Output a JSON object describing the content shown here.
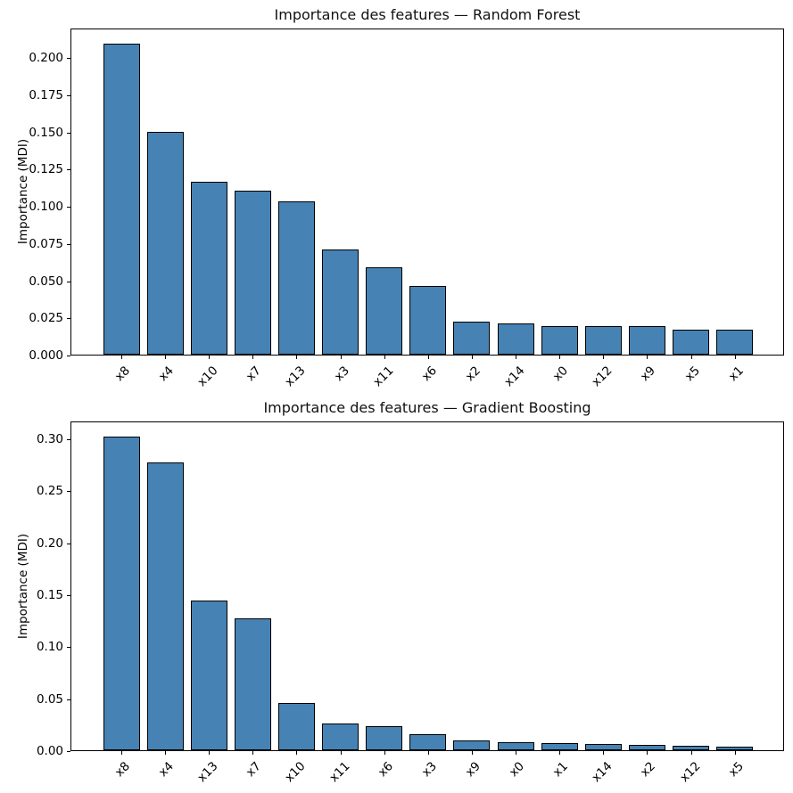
{
  "page": {
    "background": "#ffffff"
  },
  "chart_data": [
    {
      "type": "bar",
      "title": "Importance des features — Random Forest",
      "ylabel": "Importance (MDI)",
      "xlabel": "",
      "categories": [
        "x8",
        "x4",
        "x10",
        "x7",
        "x13",
        "x3",
        "x11",
        "x6",
        "x2",
        "x14",
        "x0",
        "x12",
        "x9",
        "x5",
        "x1"
      ],
      "values": [
        0.209,
        0.15,
        0.116,
        0.11,
        0.103,
        0.071,
        0.059,
        0.046,
        0.022,
        0.021,
        0.019,
        0.019,
        0.019,
        0.017,
        0.017
      ],
      "ylim": [
        0,
        0.22
      ],
      "ytick_values": [
        0,
        0.025,
        0.05,
        0.075,
        0.1,
        0.125,
        0.15,
        0.175,
        0.2
      ],
      "ytick_labels": [
        "0.000",
        "0.025",
        "0.050",
        "0.075",
        "0.100",
        "0.125",
        "0.150",
        "0.175",
        "0.200"
      ],
      "xtick_rotation": 45,
      "grid": false,
      "legend": "none",
      "bar_color": "#4682b4",
      "bar_edge_color": "#000000"
    },
    {
      "type": "bar",
      "title": "Importance des features — Gradient Boosting",
      "ylabel": "Importance (MDI)",
      "xlabel": "",
      "categories": [
        "x8",
        "x4",
        "x13",
        "x7",
        "x10",
        "x11",
        "x6",
        "x3",
        "x9",
        "x0",
        "x1",
        "x14",
        "x2",
        "x12",
        "x5"
      ],
      "values": [
        0.302,
        0.277,
        0.144,
        0.127,
        0.045,
        0.026,
        0.023,
        0.015,
        0.009,
        0.008,
        0.007,
        0.006,
        0.005,
        0.004,
        0.003
      ],
      "ylim": [
        0,
        0.317
      ],
      "ytick_values": [
        0,
        0.05,
        0.1,
        0.15,
        0.2,
        0.25,
        0.3
      ],
      "ytick_labels": [
        "0.00",
        "0.05",
        "0.10",
        "0.15",
        "0.20",
        "0.25",
        "0.30"
      ],
      "xtick_rotation": 45,
      "grid": false,
      "legend": "none",
      "bar_color": "#4682b4",
      "bar_edge_color": "#000000"
    }
  ]
}
